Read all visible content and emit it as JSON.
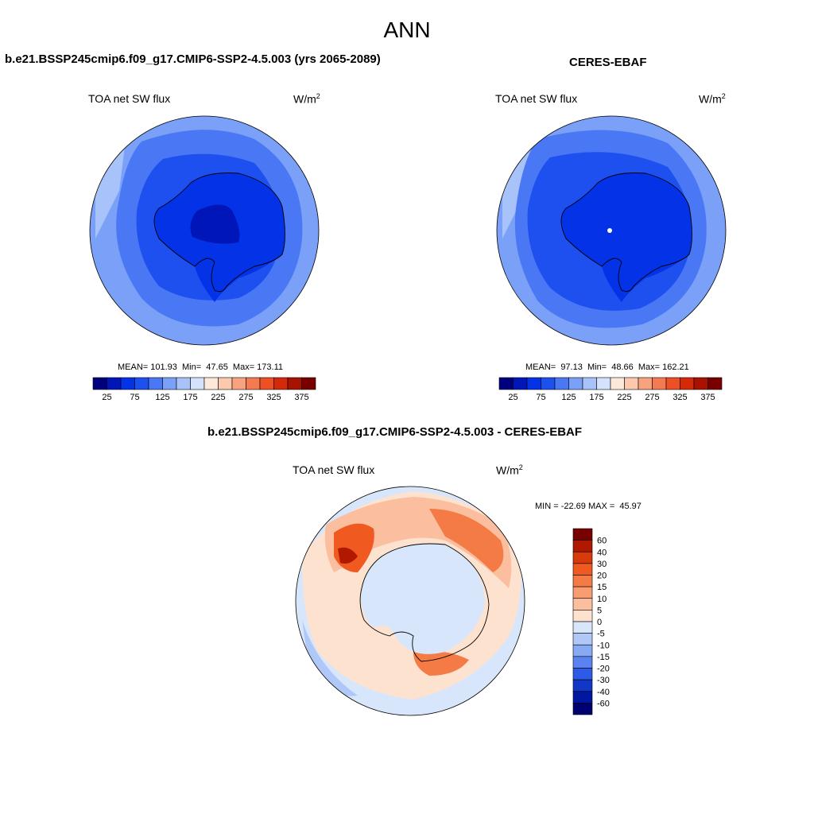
{
  "title": "ANN",
  "panels": [
    {
      "title": "b.e21.BSSP245cmip6.f09_g17.CMIP6-SSP2-4.5.003 (yrs 2065-2089)",
      "variable": "TOA net SW flux",
      "units": "W/m",
      "units_sup": "2",
      "stats": "MEAN= 101.93  Min=  47.65  Max= 173.11",
      "colorbar_labels": [
        "25",
        "75",
        "125",
        "175",
        "225",
        "275",
        "325",
        "375"
      ]
    },
    {
      "title": "CERES-EBAF",
      "variable": "TOA net SW flux",
      "units": "W/m",
      "units_sup": "2",
      "stats": "MEAN=  97.13  Min=  48.66  Max= 162.21",
      "colorbar_labels": [
        "25",
        "75",
        "125",
        "175",
        "225",
        "275",
        "325",
        "375"
      ]
    },
    {
      "title": "b.e21.BSSP245cmip6.f09_g17.CMIP6-SSP2-4.5.003 - CERES-EBAF",
      "variable": "TOA net SW flux",
      "units": "W/m",
      "units_sup": "2",
      "stats": "MIN = -22.69 MAX =  45.97",
      "colorbar_labels": [
        "60",
        "40",
        "30",
        "20",
        "15",
        "10",
        "5",
        "0",
        "-5",
        "-10",
        "-15",
        "-20",
        "-30",
        "-40",
        "-60"
      ]
    }
  ],
  "colors": {
    "abs_scale": [
      "#00007f",
      "#0016b8",
      "#0432e6",
      "#1e50f0",
      "#4a78f5",
      "#7aa0f8",
      "#a8c2fa",
      "#d4e2fb",
      "#fde9d9",
      "#fcc8ae",
      "#f9a27f",
      "#f47a52",
      "#ec5024",
      "#d42a0a",
      "#a81200",
      "#7a0000"
    ],
    "diff_scale": [
      "#7a0000",
      "#b01800",
      "#d83a0c",
      "#f05a20",
      "#f47b45",
      "#f89c72",
      "#fbbfa0",
      "#fde3cf",
      "#d8e6fb",
      "#b0c8f8",
      "#88aaf4",
      "#5a82f0",
      "#2e5ae8",
      "#1236c8",
      "#0018a0",
      "#000070"
    ]
  }
}
